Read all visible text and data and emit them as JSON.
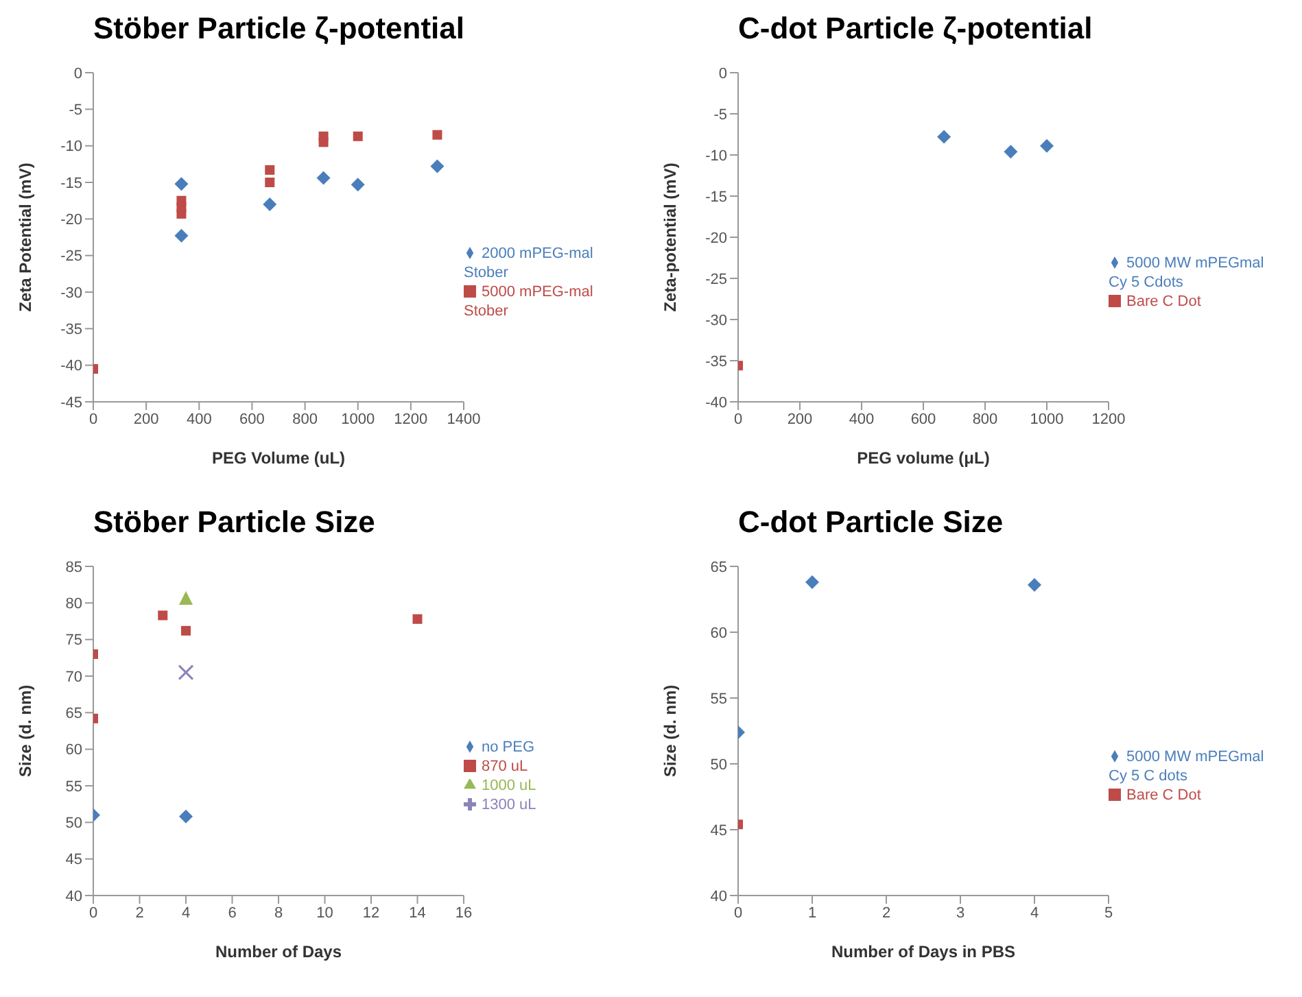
{
  "chart_data": [
    {
      "type": "scatter",
      "title": "Stöber Particle ζ-potential",
      "xlabel": "PEG Volume (uL)",
      "ylabel": "Zeta Potential (mV)",
      "xlim": [
        0,
        1400
      ],
      "xticks": [
        0,
        200,
        400,
        600,
        800,
        1000,
        1200,
        1400
      ],
      "ylim": [
        -45,
        0
      ],
      "yticks": [
        -45,
        -40,
        -35,
        -30,
        -25,
        -20,
        -15,
        -10,
        -5,
        0
      ],
      "grid": false,
      "legend": "right",
      "series": [
        {
          "name": "2000 mPEG-mal Stober",
          "color": "#4a7ebb",
          "marker": "diamond",
          "x": [
            333,
            333,
            667,
            870,
            1000,
            1300
          ],
          "values": [
            -15.2,
            -22.3,
            -18,
            -14.4,
            -15.3,
            -12.8
          ]
        },
        {
          "name": "5000 mPEG-mal Stober",
          "color": "#be4b48",
          "marker": "square",
          "x": [
            0,
            333,
            333,
            333,
            667,
            667,
            870,
            870,
            1000,
            1300
          ],
          "values": [
            -40.5,
            -17.5,
            -18.4,
            -19.3,
            -13.3,
            -15,
            -8.7,
            -9.5,
            -8.7,
            -8.5
          ]
        }
      ]
    },
    {
      "type": "scatter",
      "title": "C-dot Particle ζ-potential",
      "xlabel": "PEG volume (μL)",
      "ylabel": "Zeta-potential (mV)",
      "xlim": [
        0,
        1200
      ],
      "xticks": [
        0,
        200,
        400,
        600,
        800,
        1000,
        1200
      ],
      "ylim": [
        -40,
        0
      ],
      "yticks": [
        -40,
        -35,
        -30,
        -25,
        -20,
        -15,
        -10,
        -5,
        0
      ],
      "grid": false,
      "legend": "right",
      "series": [
        {
          "name": "5000 MW mPEGmal Cy 5 Cdots",
          "color": "#4a7ebb",
          "marker": "diamond",
          "x": [
            667,
            883,
            1000
          ],
          "values": [
            -7.8,
            -9.6,
            -8.9
          ]
        },
        {
          "name": "Bare C Dot",
          "color": "#be4b48",
          "marker": "square",
          "x": [
            0
          ],
          "values": [
            -35.6
          ]
        }
      ]
    },
    {
      "type": "scatter",
      "title": "Stöber Particle Size",
      "xlabel": "Number of Days",
      "ylabel": "Size (d. nm)",
      "xlim": [
        0,
        16
      ],
      "xticks": [
        0,
        2,
        4,
        6,
        8,
        10,
        12,
        14,
        16
      ],
      "ylim": [
        40,
        85
      ],
      "yticks": [
        40,
        45,
        50,
        55,
        60,
        65,
        70,
        75,
        80,
        85
      ],
      "grid": false,
      "legend": "right",
      "series": [
        {
          "name": "no PEG",
          "color": "#4a7ebb",
          "marker": "diamond",
          "x": [
            0,
            4
          ],
          "values": [
            51,
            50.8
          ]
        },
        {
          "name": "870 uL",
          "color": "#be4b48",
          "marker": "square",
          "x": [
            0,
            0,
            3,
            4,
            14
          ],
          "values": [
            73,
            64.2,
            78.3,
            76.2,
            77.8
          ]
        },
        {
          "name": "1000 uL",
          "color": "#98b954",
          "marker": "triangle",
          "x": [
            4
          ],
          "values": [
            80.5
          ]
        },
        {
          "name": "1300 uL",
          "color": "#8a85b8",
          "marker": "cross",
          "x": [
            4
          ],
          "values": [
            70.5
          ]
        }
      ]
    },
    {
      "type": "scatter",
      "title": "C-dot Particle Size",
      "xlabel": "Number of Days in PBS",
      "ylabel": "Size (d. nm)",
      "xlim": [
        0,
        5
      ],
      "xticks": [
        0,
        1,
        2,
        3,
        4,
        5
      ],
      "ylim": [
        40,
        65
      ],
      "yticks": [
        40,
        45,
        50,
        55,
        60,
        65
      ],
      "grid": false,
      "legend": "right",
      "series": [
        {
          "name": "5000 MW mPEGmal Cy 5 C dots",
          "color": "#4a7ebb",
          "marker": "diamond",
          "x": [
            0,
            1,
            4
          ],
          "values": [
            52.4,
            63.8,
            63.6
          ]
        },
        {
          "name": "Bare C Dot",
          "color": "#be4b48",
          "marker": "square",
          "x": [
            0
          ],
          "values": [
            45.4
          ]
        }
      ]
    }
  ]
}
